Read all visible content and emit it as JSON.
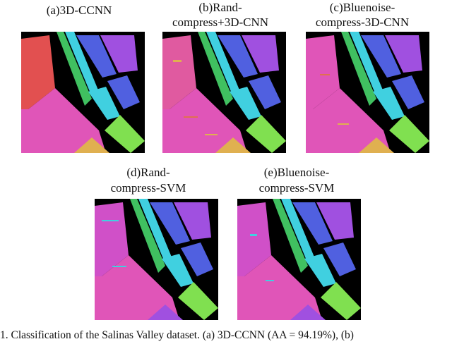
{
  "figure": {
    "panels": [
      {
        "label_line1": "(a)3D-CCNN",
        "label_line2": "",
        "variant": "a"
      },
      {
        "label_line1": "(b)Rand-",
        "label_line2": "compress+3D-CNN",
        "variant": "b"
      },
      {
        "label_line1": "(c)Bluenoise-",
        "label_line2": "compress-3D-CNN",
        "variant": "c"
      },
      {
        "label_line1": "(d)Rand-",
        "label_line2": "compress-SVM",
        "variant": "d"
      },
      {
        "label_line1": "(e)Bluenoise-",
        "label_line2": "compress-SVM",
        "variant": "e"
      }
    ],
    "caption": "1.  Classification of the Salinas Valley dataset. (a) 3D-CCNN (AA = 94.19%), (b)"
  },
  "colors": {
    "background": "#000000",
    "magenta": "#e055b8",
    "red": "#e25050",
    "purple": "#a050e0",
    "blue": "#5060e0",
    "cyan": "#40d0e0",
    "green": "#40c060",
    "lime": "#80e050",
    "gold": "#e0b050",
    "orange": "#e07050"
  }
}
